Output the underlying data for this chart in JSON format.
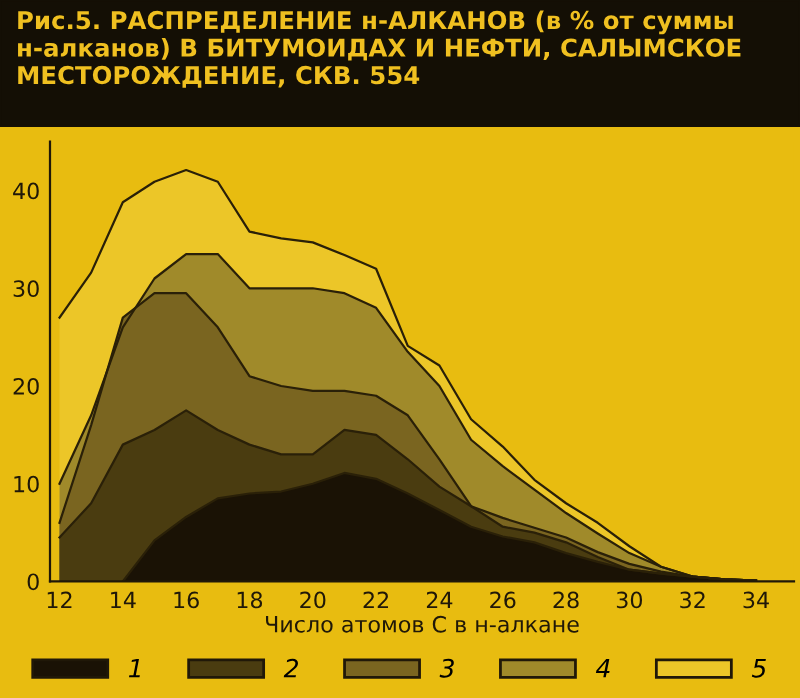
{
  "chart_data": {
    "type": "area",
    "title": "Рис.5. РАСПРЕДЕЛЕНИЕ н-АЛКАНОВ (в % от суммы н-алканов) В БИТУМОИДАХ И НЕФТИ, САЛЫМСКОЕ МЕСТОРОЖДЕНИЕ, СКВ. 554",
    "xlabel": "Число атомов С в н-алкане",
    "x": [
      12,
      13,
      14,
      15,
      16,
      17,
      18,
      19,
      20,
      21,
      22,
      23,
      24,
      25,
      26,
      27,
      28,
      29,
      30,
      31,
      32,
      33,
      34
    ],
    "series": [
      {
        "name": "5",
        "color": "#ecc628",
        "values": [
          27,
          31.6,
          38.8,
          40.9,
          42.1,
          40.9,
          35.8,
          35.1,
          34.7,
          33.4,
          32,
          24.1,
          22.1,
          16.6,
          13.8,
          10.4,
          8,
          6,
          3.6,
          1.5,
          0.5,
          0.2,
          0.1
        ]
      },
      {
        "name": "4",
        "color": "#a08a2a",
        "values": [
          10,
          17,
          26,
          31,
          33.5,
          33.5,
          30,
          30,
          30,
          29.5,
          28,
          23.5,
          20,
          14.5,
          11.8,
          9.4,
          7,
          4.9,
          2.9,
          1.5,
          0.5,
          0.2,
          0.1
        ]
      },
      {
        "name": "3",
        "color": "#7a6520",
        "values": [
          6,
          16,
          27,
          29.5,
          29.5,
          26,
          21,
          20,
          19.5,
          19.5,
          19,
          17,
          12.5,
          7.7,
          6.5,
          5.5,
          4.5,
          3,
          1.8,
          1,
          0.5,
          0.2,
          0.1
        ]
      },
      {
        "name": "2",
        "color": "#4a3c10",
        "values": [
          4.5,
          8,
          14,
          15.5,
          17.5,
          15.5,
          14,
          13,
          13,
          15.5,
          15,
          12.5,
          9.7,
          7.7,
          5.6,
          5,
          4,
          2.5,
          1.2,
          0.8,
          0.5,
          0.2,
          0.1
        ]
      },
      {
        "name": "1",
        "color": "#1a1205",
        "values": [
          null,
          null,
          0,
          4.2,
          6.6,
          8.5,
          9,
          9.2,
          10,
          11.1,
          10.5,
          9,
          7.3,
          5.6,
          4.6,
          4,
          2.9,
          2,
          1.2,
          0.8,
          0.5,
          0.2,
          0.1
        ]
      }
    ],
    "xlim": [
      11.7,
      35.2
    ],
    "ylim": [
      0,
      45
    ],
    "xticks": [
      12,
      14,
      16,
      18,
      20,
      22,
      24,
      26,
      28,
      30,
      32,
      34
    ],
    "yticks": [
      0,
      10,
      20,
      30,
      40
    ],
    "grid": false,
    "legend": "bottom"
  }
}
